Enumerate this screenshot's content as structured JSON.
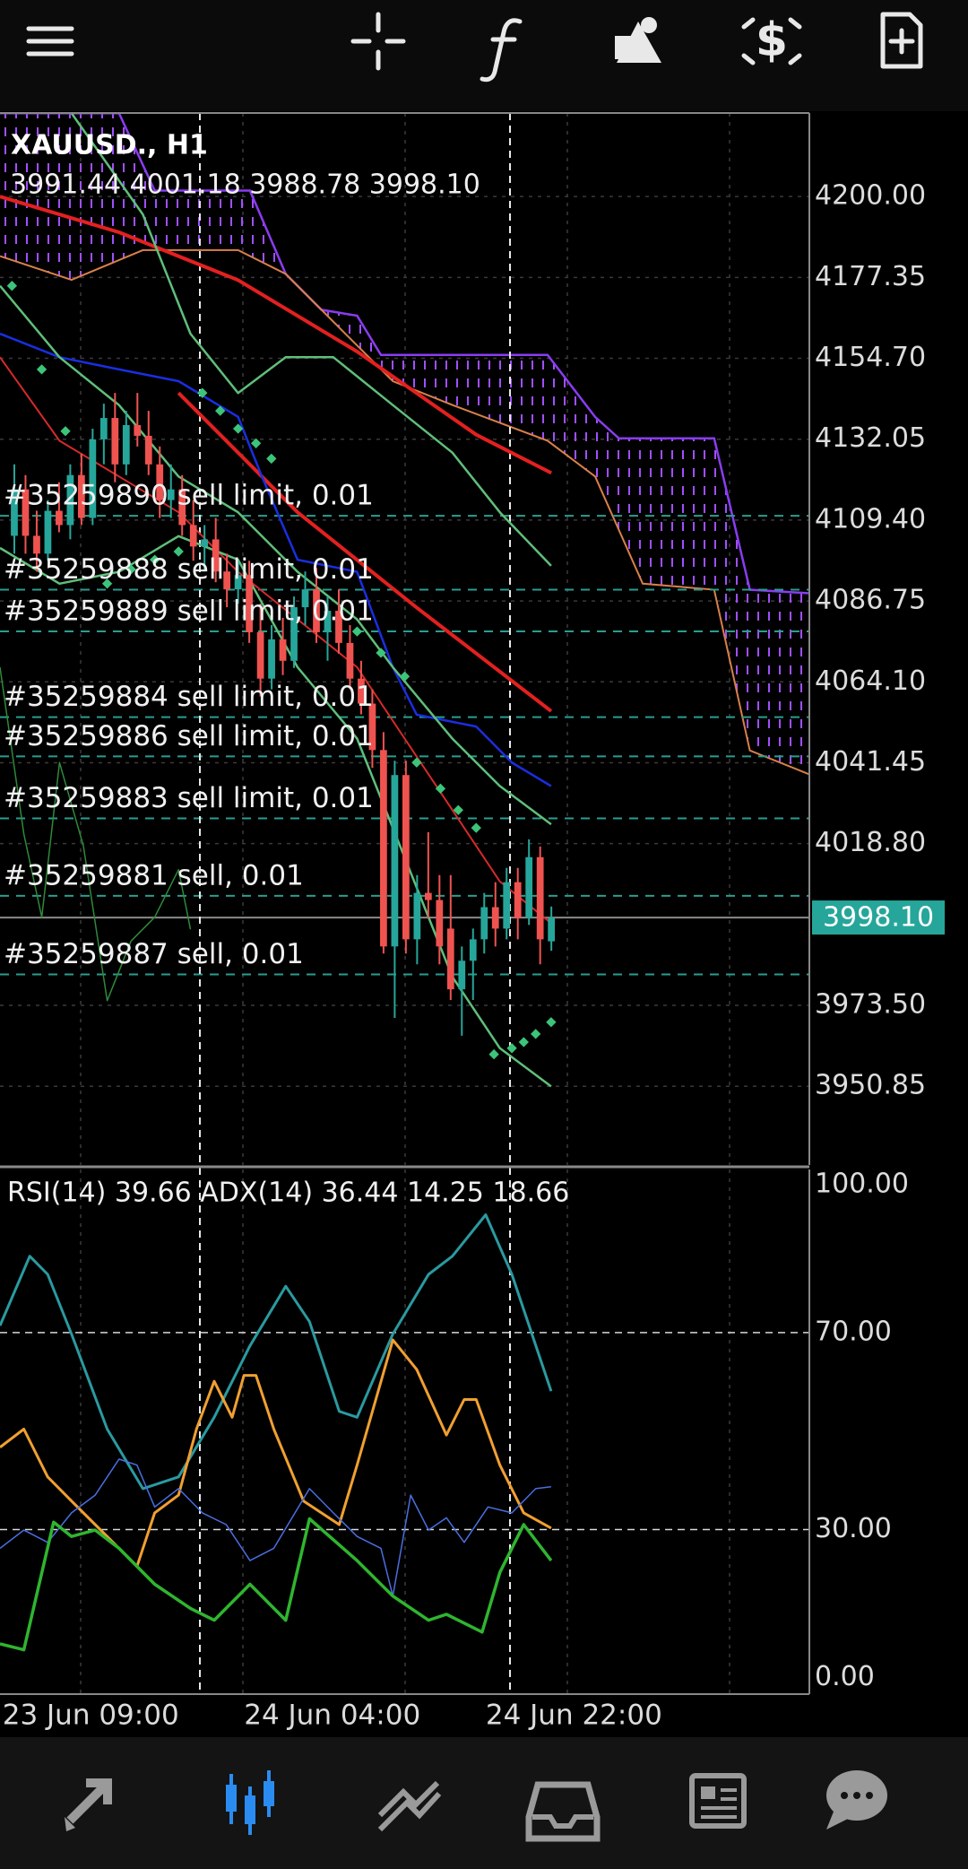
{
  "chart_data": [
    {
      "type": "candlestick",
      "title": "XAUUSD., H1",
      "subtitle": "3991.44 4001.18 3988.78 3998.10",
      "up_color": "#26a69a",
      "down_color": "#ef5350",
      "xlim": [
        -1.28,
        71.06
      ],
      "ylim": [
        3928.8,
        4223.4
      ],
      "grid": true,
      "yticks": [
        {
          "value": 4200,
          "label": "4200.00"
        },
        {
          "value": 4177.35,
          "label": "4177.35"
        },
        {
          "value": 4154.7,
          "label": "4154.70"
        },
        {
          "value": 4132.05,
          "label": "4132.05"
        },
        {
          "value": 4109.4,
          "label": "4109.40"
        },
        {
          "value": 4086.75,
          "label": "4086.75"
        },
        {
          "value": 4064.1,
          "label": "4064.10"
        },
        {
          "value": 4041.45,
          "label": "4041.45"
        },
        {
          "value": 4018.8,
          "label": "4018.80"
        },
        {
          "value": 3973.5,
          "label": "3973.50"
        },
        {
          "value": 3950.85,
          "label": "3950.85"
        }
      ],
      "x": [
        0,
        1,
        2,
        3,
        4,
        5,
        6,
        7,
        8,
        9,
        10,
        11,
        12,
        13,
        14,
        15,
        16,
        17,
        18,
        19,
        20,
        21,
        22,
        23,
        24,
        25,
        26,
        27,
        28,
        29,
        30,
        31,
        32,
        33,
        34,
        35,
        36,
        37,
        38,
        39,
        40,
        41,
        42,
        43,
        44,
        45,
        46,
        47,
        48
      ],
      "open": [
        4105,
        4118,
        4105,
        4100,
        4112,
        4108,
        4122,
        4110,
        4132,
        4138,
        4125,
        4136,
        4133,
        4125,
        4115,
        4118,
        4108,
        4102,
        4104,
        4095,
        4090,
        4094,
        4078,
        4065,
        4076,
        4070,
        4085,
        4090,
        4078,
        4084,
        4075,
        4065,
        4058,
        4045,
        3990,
        4038,
        3992,
        4005,
        4003,
        3995,
        3978,
        3986,
        3992,
        4001,
        3995,
        4008,
        3998,
        4015,
        3991.44
      ],
      "high": [
        4125,
        4122,
        4112,
        4115,
        4120,
        4125,
        4128,
        4135,
        4142,
        4145,
        4140,
        4145,
        4140,
        4130,
        4125,
        4122,
        4115,
        4108,
        4110,
        4100,
        4098,
        4098,
        4086,
        4080,
        4082,
        4088,
        4095,
        4096,
        4088,
        4090,
        4080,
        4070,
        4062,
        4050,
        4042,
        4042,
        4010,
        4022,
        4010,
        4010,
        3990,
        3995,
        4005,
        4008,
        4012,
        4012,
        4020,
        4018,
        4001.18
      ],
      "low": [
        4100,
        4100,
        4095,
        4098,
        4106,
        4104,
        4108,
        4108,
        4125,
        4120,
        4122,
        4130,
        4122,
        4110,
        4110,
        4105,
        4098,
        4095,
        4092,
        4085,
        4086,
        4075,
        4060,
        4062,
        4066,
        4068,
        4080,
        4075,
        4070,
        4072,
        4062,
        4055,
        4040,
        3988,
        3970,
        3988,
        3985,
        3998,
        3985,
        3975,
        3965,
        3975,
        3988,
        3990,
        3992,
        3992,
        3996,
        3985,
        3988.78
      ],
      "close": [
        4118,
        4105,
        4100,
        4112,
        4108,
        4122,
        4110,
        4132,
        4138,
        4125,
        4136,
        4133,
        4125,
        4115,
        4118,
        4108,
        4102,
        4104,
        4095,
        4090,
        4094,
        4078,
        4065,
        4076,
        4070,
        4085,
        4090,
        4078,
        4084,
        4075,
        4065,
        4058,
        4045,
        3990,
        4038,
        3992,
        4005,
        4003,
        3990,
        3978,
        3986,
        3992,
        4001,
        3995,
        4008,
        3998,
        4015,
        3992,
        3998.1
      ],
      "cloud": {
        "fill": "#8a3cf0",
        "upper_color": "#8a3cf0",
        "lower_color": "#d9804a",
        "upper": {
          "x": [
            -1.28,
            9.36,
            12.55,
            21.06,
            24.26,
            27.45,
            30.64,
            32.77,
            47.66,
            51.91,
            54.04,
            62.55,
            65.74,
            71.06
          ],
          "values": [
            4223.35,
            4223.35,
            4201.67,
            4201.67,
            4178.32,
            4168.31,
            4166.64,
            4155.63,
            4155.63,
            4138.28,
            4132.28,
            4132.28,
            4089.92,
            4088.92
          ]
        },
        "lower": {
          "x": [
            -1.28,
            5.11,
            11.49,
            20,
            24.26,
            29.57,
            33.83,
            39.15,
            47.66,
            51.91,
            56.17,
            62.55,
            65.74,
            71.06
          ],
          "values": [
            4183.32,
            4176.65,
            4184.99,
            4184.99,
            4178.32,
            4161.64,
            4148.3,
            4141.63,
            4131.62,
            4121.61,
            4091.59,
            4089.92,
            4044.88,
            4038.21
          ]
        }
      },
      "lines": [
        {
          "color": "#e32020",
          "width": 4,
          "x": [
            -1.28,
            9.36,
            20,
            30.64,
            41.28,
            48
          ],
          "values": [
            4200,
            4190,
            4176.6,
            4156.6,
            4133.3,
            4122.6
          ]
        },
        {
          "color": "#e32020",
          "width": 4,
          "x": [
            14.68,
            25.32,
            35.96,
            47.98
          ],
          "values": [
            4145,
            4111.6,
            4084.9,
            4055.9
          ]
        },
        {
          "color": "#d42a2a",
          "width": 2,
          "x": [
            -1.28,
            4.04,
            9.36,
            14.68,
            20,
            25.32,
            30.64,
            34.89,
            39.15,
            43.4,
            47.98
          ],
          "values": [
            4155,
            4131.6,
            4121.6,
            4111.6,
            4094.9,
            4081.6,
            4068.2,
            4048.2,
            4028.2,
            4008.2,
            3996.5
          ]
        },
        {
          "color": "#1a2ee0",
          "width": 2.5,
          "x": [
            -1.28,
            4.04,
            9.36,
            14.68,
            20,
            22.13,
            25.32,
            30.64,
            33.83,
            35.96,
            41.28,
            44.47,
            47.98
          ],
          "values": [
            4161.6,
            4155,
            4151.6,
            4148.3,
            4138.3,
            4121.6,
            4098.3,
            4094.9,
            4068.2,
            4054.9,
            4051.6,
            4041.5,
            4034.9
          ]
        },
        {
          "color": "#5fbf7a",
          "width": 2.5,
          "x": [
            5.11,
            11.49,
            15.74,
            20,
            24.26,
            28.51,
            33.83,
            39.15,
            43.4,
            47.98
          ],
          "values": [
            4223.35,
            4195,
            4161.6,
            4145,
            4155,
            4155,
            4141.6,
            4128.3,
            4111.6,
            4096.6
          ]
        },
        {
          "color": "#5fbf7a",
          "width": 2.5,
          "x": [
            -1.28,
            4.04,
            9.36,
            14.68,
            20,
            25.32,
            30.64,
            33.83,
            39.15,
            43.4,
            47.98
          ],
          "values": [
            4175,
            4155,
            4141.6,
            4121.6,
            4111.6,
            4094.9,
            4081.6,
            4068.2,
            4048.2,
            4034.9,
            4024.2
          ]
        },
        {
          "color": "#5fbf7a",
          "width": 2.5,
          "x": [
            -1.28,
            4.04,
            9.36,
            14.68,
            20,
            25.32,
            30.64,
            34.89,
            39.15,
            43.4,
            47.98
          ],
          "values": [
            4101.6,
            4091.6,
            4094.9,
            4104.9,
            4098.3,
            4068.2,
            4048.2,
            4014.9,
            3981.5,
            3961.5,
            3950.8
          ]
        },
        {
          "color": "#2f8a3a",
          "width": 1.5,
          "x": [
            -1.28,
            0.85,
            2.45,
            4.04,
            6.17,
            8.3,
            10.43,
            12.55,
            14.68,
            15.74
          ],
          "values": [
            4068.2,
            4021.5,
            3998.2,
            4041.5,
            4018.2,
            3974.8,
            3991.5,
            3998.2,
            4011.5,
            3994.8
          ]
        }
      ],
      "sar": {
        "color": "#3cc47a",
        "x": [
          -0.21,
          2.45,
          4.57,
          8.3,
          10.43,
          12.55,
          14.68,
          16.81,
          18.4,
          20,
          21.6,
          22.98,
          30.64,
          32.77,
          34.89,
          35.96,
          38.09,
          39.68,
          41.28,
          42.87,
          44.47,
          45.53,
          46.6,
          47.98
        ],
        "values": [
          4175,
          4151.6,
          4134.3,
          4091.6,
          4095.6,
          4098.3,
          4100.6,
          4145,
          4140,
          4135,
          4130.9,
          4126.6,
          4078.2,
          4072.2,
          4065.6,
          4041.5,
          4034.2,
          4028.2,
          4023.2,
          3959.8,
          3961.5,
          3963.2,
          3965.5,
          3968.8
        ]
      },
      "orders": {
        "color": "#2a9d8f",
        "items": [
          {
            "label": "#35259890 sell limit, 0.01",
            "value": 4110.6
          },
          {
            "label": "#35259888 sell limit, 0.01",
            "value": 4089.92
          },
          {
            "label": "#35259889 sell limit, 0.01",
            "value": 4078.24
          },
          {
            "label": "#35259884 sell limit, 0.01",
            "value": 4054.23
          },
          {
            "label": "#35259886 sell limit, 0.01",
            "value": 4043.22
          },
          {
            "label": "#35259883 sell limit, 0.01",
            "value": 4025.87
          },
          {
            "label": "#35259881 sell, 0.01",
            "value": 4004.19
          },
          {
            "label": "#35259887 sell, 0.01",
            "value": 3982.17
          }
        ]
      },
      "current_price": {
        "value": 3998.1,
        "label": "3998.10",
        "color": "#26a69a"
      }
    },
    {
      "type": "line",
      "title": "RSI(14) 39.66 ADX(14) 36.44 14.25 18.66",
      "xlim": [
        -1.28,
        71.06
      ],
      "ylim": [
        -3.4,
        103.1
      ],
      "yticks": [
        {
          "value": 100,
          "label": "100.00"
        },
        {
          "value": 70,
          "label": "70.00"
        },
        {
          "value": 30,
          "label": "30.00"
        },
        {
          "value": 0,
          "label": "0.00"
        }
      ],
      "xticks": [
        {
          "value": -1.06,
          "label": "23 Jun 09:00"
        },
        {
          "value": 20.53,
          "label": "24 Jun 04:00"
        },
        {
          "value": 42.13,
          "label": "24 Jun 22:00"
        }
      ],
      "series": [
        {
          "color": "#2a9aa0",
          "width": 3,
          "x": [
            -1.28,
            1.38,
            2.98,
            5.11,
            8.3,
            11.49,
            14.68,
            17.87,
            21.06,
            24.26,
            26.38,
            29.04,
            30.64,
            33.83,
            37.02,
            39.15,
            42.13,
            44.47,
            47.98
          ],
          "values": [
            71.4,
            85.5,
            81.8,
            69.7,
            50.4,
            38.3,
            40.7,
            52.8,
            67.3,
            79.4,
            72.2,
            54,
            52.8,
            69.7,
            81.8,
            85.5,
            93.9,
            81.8,
            58.1
          ]
        },
        {
          "color": "#f0a030",
          "width": 3,
          "x": [
            -1.28,
            0.85,
            2.98,
            5.11,
            7.23,
            9.36,
            10.96,
            12.55,
            14.68,
            16.28,
            17.87,
            19.47,
            20.53,
            21.6,
            23.19,
            25.85,
            29.04,
            30.64,
            33.83,
            35.96,
            38.62,
            40.21,
            41.28,
            43.4,
            45.53,
            47.98
          ],
          "values": [
            46.7,
            50.4,
            40.7,
            35.8,
            31,
            26.2,
            22.5,
            33.4,
            37,
            50.4,
            60.1,
            52.8,
            61.3,
            61.3,
            50.4,
            35.8,
            31,
            43.1,
            68.5,
            62.5,
            49.2,
            56.4,
            56.4,
            43.1,
            33.4,
            30.3
          ]
        },
        {
          "color": "#4a6fe0",
          "width": 1.5,
          "x": [
            -1.28,
            0.85,
            2.98,
            5.11,
            7.23,
            9.36,
            10.96,
            12.55,
            14.68,
            16.81,
            18.94,
            21.06,
            23.19,
            26.38,
            28.51,
            30.64,
            32.77,
            33.83,
            35.43,
            37.02,
            38.62,
            40.21,
            42.34,
            44.47,
            46.6,
            47.98
          ],
          "values": [
            26.2,
            29.9,
            27.4,
            33.4,
            37,
            44.3,
            43.1,
            34.6,
            38.3,
            33.4,
            31,
            23.7,
            26.2,
            38.3,
            33.4,
            28.6,
            26.2,
            16.5,
            37,
            29.9,
            32.4,
            27.4,
            34.6,
            33.4,
            38.3,
            38.7
          ]
        },
        {
          "color": "#2fb52f",
          "width": 3.5,
          "x": [
            -1.28,
            0.85,
            3.51,
            5.11,
            7.23,
            9.36,
            12.55,
            15.74,
            17.87,
            21.06,
            24.26,
            26.38,
            30.64,
            33.83,
            37.02,
            38.62,
            41.81,
            43.4,
            45.53,
            47.98
          ],
          "values": [
            6.8,
            5.6,
            31.5,
            28.6,
            29.9,
            26.2,
            18.9,
            14,
            11.6,
            18.9,
            11.6,
            32.2,
            23.7,
            16.5,
            11.6,
            12.8,
            9.2,
            21.3,
            31,
            23.7
          ]
        }
      ]
    }
  ]
}
